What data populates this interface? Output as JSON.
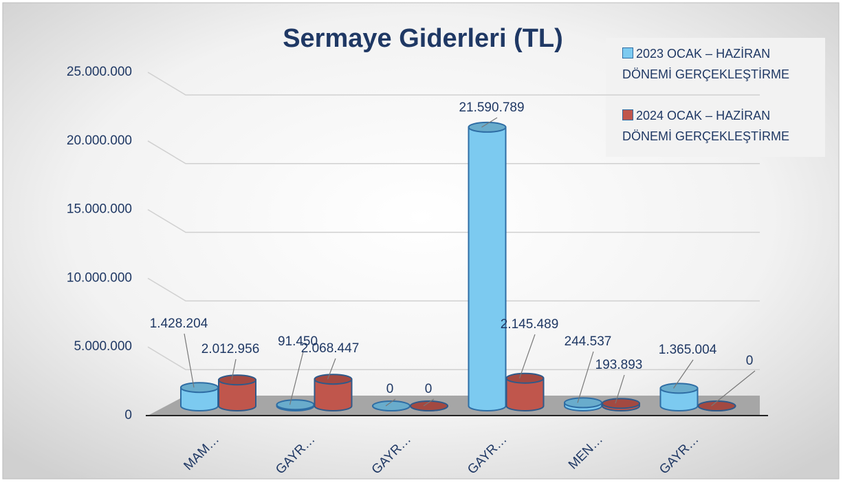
{
  "chart_data": {
    "type": "bar3d",
    "title": "Sermaye Giderleri (TL)",
    "categories": [
      "MAM…",
      "GAYR…",
      "GAYR…",
      "GAYR…",
      "MEN…",
      "GAYR…"
    ],
    "series": [
      {
        "name": "2023 OCAK – HAZİRAN DÖNEMİ GERÇEKLEŞTİRME",
        "color": "#7ccaf0",
        "values": [
          1428204,
          91450,
          0,
          21590789,
          244537,
          1365004
        ],
        "value_labels": [
          "1.428.204",
          "91.450",
          "0",
          "21.590.789",
          "244.537",
          "1.365.004"
        ]
      },
      {
        "name": "2024 OCAK – HAZİRAN DÖNEMİ GERÇEKLEŞTİRME",
        "color": "#c0564c",
        "values": [
          2012956,
          2068447,
          0,
          2145489,
          193893,
          0
        ],
        "value_labels": [
          "2.012.956",
          "2.068.447",
          "0",
          "2.145.489",
          "193.893",
          "0"
        ]
      }
    ],
    "ylim": [
      0,
      25000000
    ],
    "yticks": [
      0,
      {
        "value": 5000000,
        "label": "5.000.000"
      },
      {
        "value": 10000000,
        "label": "10.000.000"
      },
      {
        "value": 15000000,
        "label": "15.000.000"
      },
      {
        "value": 20000000,
        "label": "20.000.000"
      },
      {
        "value": 25000000,
        "label": "25.000.000"
      }
    ],
    "grid": true,
    "legend": "top-right"
  }
}
